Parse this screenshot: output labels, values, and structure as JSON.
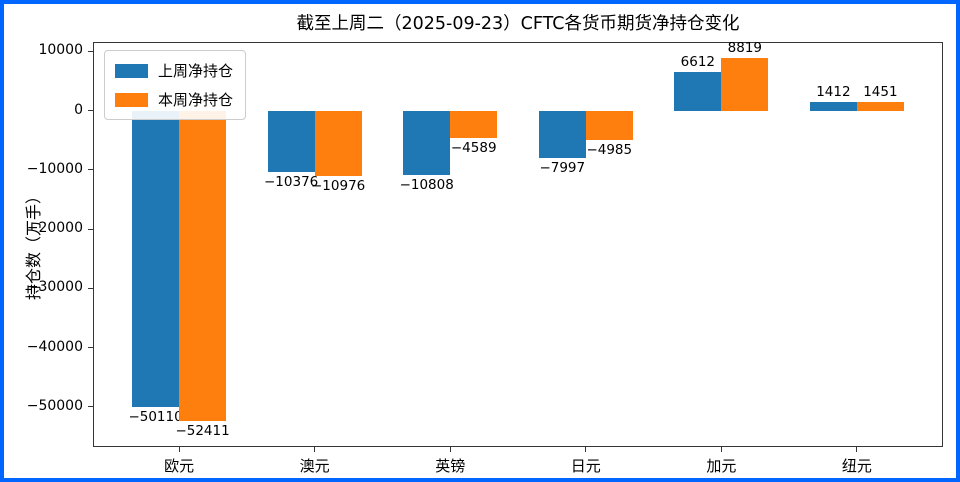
{
  "frame": {
    "border_color": "#0066ff",
    "background": "#ffffff"
  },
  "chart_data": {
    "type": "bar",
    "title": "截至上周二（2025-09-23）CFTC各货币期货净持仓变化",
    "xlabel": "",
    "ylabel": "持仓数（万手）",
    "categories": [
      "欧元",
      "澳元",
      "英镑",
      "日元",
      "加元",
      "纽元"
    ],
    "series": [
      {
        "name": "上周净持仓",
        "color": "#1f77b4",
        "values": [
          -50110,
          -10376,
          -10808,
          -7997,
          6612,
          1412
        ]
      },
      {
        "name": "本周净持仓",
        "color": "#ff7f0e",
        "values": [
          -52411,
          -10976,
          -4589,
          -4985,
          8819,
          1451
        ]
      }
    ],
    "bar_value_labels": {
      "上周净持仓": [
        "−50110",
        "−10376",
        "−10808",
        "−7997",
        "6612",
        "1412"
      ],
      "本周净持仓": [
        "−52411",
        "−10976",
        "−4589",
        "−4985",
        "8819",
        "1451"
      ]
    },
    "yticks": [
      10000,
      0,
      -10000,
      -20000,
      -30000,
      -40000,
      -50000
    ],
    "ytick_labels": [
      "10000",
      "0",
      "−10000",
      "−20000",
      "−30000",
      "−40000",
      "−50000"
    ],
    "ylim": [
      -56800,
      11600
    ],
    "grid": false,
    "legend_position": "upper left"
  }
}
